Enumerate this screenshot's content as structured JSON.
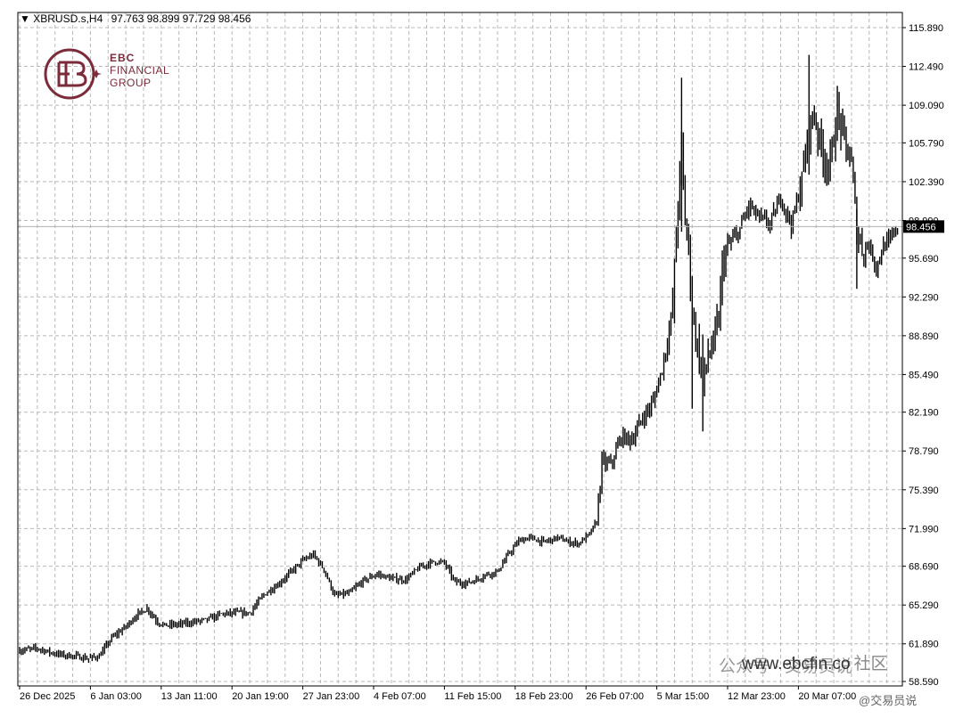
{
  "header": {
    "symbol": "XBRUSD.s,H4",
    "ohlc": "97.763 98.899 97.729 98.456"
  },
  "logo": {
    "line1": "EBC",
    "line2": "FINANCIAL",
    "line3": "GROUP"
  },
  "watermark": {
    "url": "www.ebcfin.co",
    "wechat": "公众号 · 交易员说",
    "handle": "@交易员说",
    "forum": "社区"
  },
  "chart_data": {
    "type": "bar",
    "style": "ohlc",
    "symbol": "XBRUSD.s",
    "timeframe": "H4",
    "ylim": [
      58.59,
      117.59
    ],
    "y_ticks": [
      "115.890",
      "112.490",
      "109.090",
      "105.790",
      "102.390",
      "98.990",
      "95.690",
      "92.290",
      "88.890",
      "85.490",
      "82.190",
      "78.790",
      "75.390",
      "71.990",
      "68.690",
      "65.290",
      "61.890",
      "58.590"
    ],
    "x_ticks": [
      "26 Dec 2025",
      "6 Jan 03:00",
      "13 Jan 11:00",
      "20 Jan 19:00",
      "27 Jan 23:00",
      "4 Feb 07:00",
      "11 Feb 15:00",
      "18 Feb 23:00",
      "26 Feb 07:00",
      "5 Mar 15:00",
      "12 Mar 23:00",
      "20 Mar 07:00"
    ],
    "x_tick_bars": [
      0,
      40,
      80,
      120,
      160,
      200,
      240,
      280,
      320,
      360,
      400,
      440
    ],
    "last_price": 98.456,
    "last_price_label": "98.456",
    "grid": true,
    "anchors": [
      [
        0,
        61.3
      ],
      [
        10,
        61.5
      ],
      [
        18,
        61.1
      ],
      [
        25,
        60.9
      ],
      [
        32,
        60.8
      ],
      [
        38,
        60.6
      ],
      [
        45,
        60.8
      ],
      [
        52,
        62.4
      ],
      [
        60,
        63.4
      ],
      [
        66,
        64.4
      ],
      [
        72,
        65.0
      ],
      [
        78,
        63.8
      ],
      [
        82,
        63.5
      ],
      [
        90,
        63.6
      ],
      [
        98,
        63.8
      ],
      [
        106,
        64.0
      ],
      [
        114,
        64.5
      ],
      [
        122,
        64.6
      ],
      [
        130,
        64.6
      ],
      [
        138,
        66.2
      ],
      [
        146,
        67.1
      ],
      [
        152,
        68.0
      ],
      [
        160,
        69.2
      ],
      [
        166,
        69.7
      ],
      [
        172,
        68.4
      ],
      [
        178,
        66.1
      ],
      [
        186,
        66.3
      ],
      [
        194,
        67.4
      ],
      [
        202,
        68.0
      ],
      [
        210,
        67.6
      ],
      [
        218,
        67.5
      ],
      [
        226,
        68.6
      ],
      [
        234,
        69.1
      ],
      [
        240,
        69.0
      ],
      [
        246,
        67.3
      ],
      [
        252,
        67.2
      ],
      [
        258,
        67.5
      ],
      [
        264,
        68.0
      ],
      [
        270,
        68.2
      ],
      [
        276,
        69.7
      ],
      [
        282,
        70.9
      ],
      [
        288,
        71.2
      ],
      [
        296,
        70.8
      ],
      [
        304,
        71.2
      ],
      [
        310,
        70.8
      ],
      [
        316,
        70.7
      ],
      [
        322,
        71.5
      ],
      [
        326,
        72.6
      ],
      [
        329,
        77.8
      ],
      [
        334,
        77.6
      ],
      [
        340,
        80.0
      ],
      [
        346,
        79.8
      ],
      [
        352,
        81.7
      ],
      [
        358,
        83.1
      ],
      [
        363,
        86.0
      ],
      [
        366,
        88.4
      ],
      [
        369,
        91.5
      ],
      [
        371,
        97.9
      ],
      [
        374,
        105.4
      ],
      [
        376,
        98.9
      ],
      [
        378,
        96.8
      ],
      [
        380,
        91.0
      ],
      [
        383,
        88.0
      ],
      [
        386,
        84.6
      ],
      [
        389,
        87.2
      ],
      [
        392,
        88.1
      ],
      [
        395,
        90.4
      ],
      [
        397,
        94.9
      ],
      [
        400,
        96.8
      ],
      [
        406,
        97.9
      ],
      [
        412,
        100.3
      ],
      [
        418,
        99.2
      ],
      [
        424,
        98.7
      ],
      [
        430,
        101.0
      ],
      [
        436,
        98.6
      ],
      [
        442,
        102.5
      ],
      [
        446,
        107.1
      ],
      [
        449,
        108.2
      ],
      [
        452,
        106.0
      ],
      [
        455,
        104.2
      ],
      [
        458,
        103.9
      ],
      [
        462,
        108.6
      ],
      [
        466,
        105.9
      ],
      [
        470,
        103.9
      ],
      [
        473,
        98.2
      ],
      [
        476,
        96.5
      ],
      [
        480,
        96.8
      ],
      [
        484,
        94.9
      ],
      [
        488,
        96.7
      ],
      [
        492,
        97.3
      ],
      [
        496,
        98.46
      ]
    ]
  }
}
